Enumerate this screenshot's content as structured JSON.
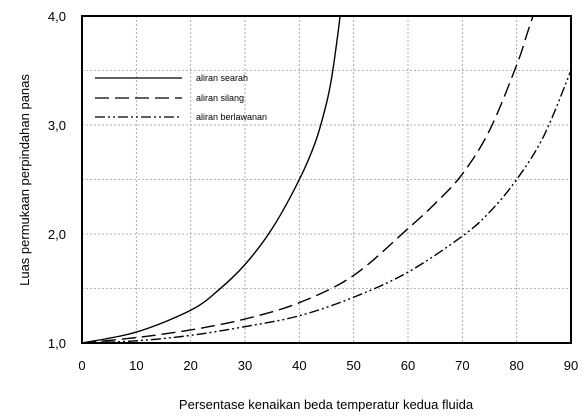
{
  "chart_data": {
    "type": "line",
    "title": "",
    "xlabel": "Persentase kenaikan beda temperatur kedua fluida",
    "ylabel": "Luas permukaan perpindahan panas",
    "xlim": [
      0,
      90
    ],
    "ylim": [
      1.0,
      4.0
    ],
    "xticks": [
      "0",
      "10",
      "20",
      "30",
      "40",
      "50",
      "60",
      "70",
      "80",
      "90"
    ],
    "yticks": [
      "1,0",
      "2,0",
      "3,0",
      "4,0"
    ],
    "grid": true,
    "legend_position": "top-left",
    "series": [
      {
        "name": "aliran searah",
        "style": "solid",
        "color": "#000000",
        "x": [
          0,
          10,
          20,
          25,
          30,
          35,
          40,
          43,
          45,
          46,
          47,
          47.5
        ],
        "y": [
          1.0,
          1.1,
          1.3,
          1.48,
          1.72,
          2.05,
          2.5,
          2.85,
          3.2,
          3.45,
          3.8,
          4.0
        ]
      },
      {
        "name": "aliran silang",
        "style": "dashed",
        "color": "#000000",
        "x": [
          0,
          10,
          20,
          30,
          40,
          50,
          60,
          65,
          70,
          75,
          80,
          82,
          83
        ],
        "y": [
          1.0,
          1.05,
          1.12,
          1.22,
          1.37,
          1.62,
          2.05,
          2.28,
          2.55,
          2.95,
          3.55,
          3.85,
          4.0
        ]
      },
      {
        "name": "aliran berlawanan",
        "style": "dash-dot-dot",
        "color": "#000000",
        "x": [
          0,
          10,
          20,
          30,
          40,
          50,
          60,
          70,
          75,
          80,
          85,
          90
        ],
        "y": [
          1.0,
          1.02,
          1.07,
          1.15,
          1.25,
          1.42,
          1.65,
          1.98,
          2.2,
          2.5,
          2.9,
          3.5
        ]
      }
    ]
  }
}
